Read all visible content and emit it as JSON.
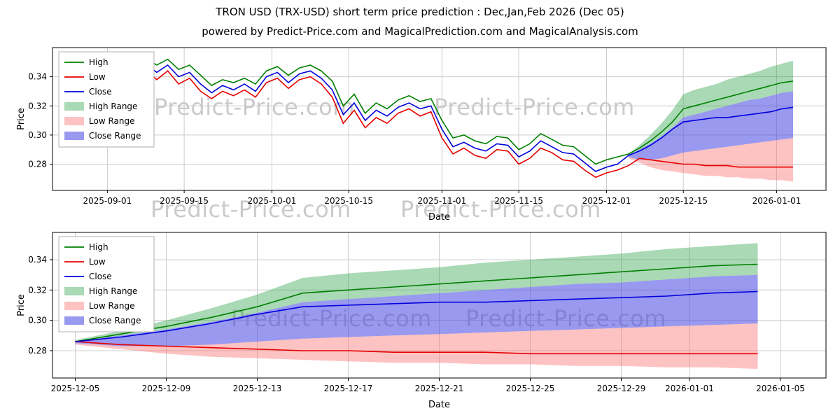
{
  "title": "TRON USD (TRX-USD) short term price prediction : Dec,Jan,Feb 2026 (Dec 05)",
  "subtitle": "powered by Predict-Price.com and MagicalPrediction.com and MagicalAnalysis.com",
  "watermark": {
    "text": "Predict-Price.com"
  },
  "colors": {
    "high": "#008000",
    "low": "#e60000",
    "close": "#0000dd",
    "high_range": "rgba(40,160,70,0.40)",
    "low_range": "rgba(250,110,110,0.42)",
    "close_range": "rgba(70,70,225,0.55)",
    "grid": "#cccccc",
    "axis": "#000000"
  },
  "legend": [
    {
      "label": "High",
      "type": "line",
      "color_key": "high"
    },
    {
      "label": "Low",
      "type": "line",
      "color_key": "low"
    },
    {
      "label": "Close",
      "type": "line",
      "color_key": "close"
    },
    {
      "label": "High Range",
      "type": "patch",
      "color_key": "high_range"
    },
    {
      "label": "Low Range",
      "type": "patch",
      "color_key": "low_range"
    },
    {
      "label": "Close Range",
      "type": "patch",
      "color_key": "close_range"
    }
  ],
  "chart_data": {
    "type": "line",
    "history": {
      "dates": [
        "2025-08-25",
        "2025-08-27",
        "2025-08-29",
        "2025-08-31",
        "2025-09-02",
        "2025-09-04",
        "2025-09-06",
        "2025-09-08",
        "2025-09-10",
        "2025-09-12",
        "2025-09-14",
        "2025-09-16",
        "2025-09-18",
        "2025-09-20",
        "2025-09-22",
        "2025-09-24",
        "2025-09-26",
        "2025-09-28",
        "2025-09-30",
        "2025-10-02",
        "2025-10-04",
        "2025-10-06",
        "2025-10-08",
        "2025-10-10",
        "2025-10-12",
        "2025-10-14",
        "2025-10-16",
        "2025-10-18",
        "2025-10-20",
        "2025-10-22",
        "2025-10-24",
        "2025-10-26",
        "2025-10-28",
        "2025-10-30",
        "2025-11-01",
        "2025-11-03",
        "2025-11-05",
        "2025-11-07",
        "2025-11-09",
        "2025-11-11",
        "2025-11-13",
        "2025-11-15",
        "2025-11-17",
        "2025-11-19",
        "2025-11-21",
        "2025-11-23",
        "2025-11-25",
        "2025-11-27",
        "2025-11-29",
        "2025-12-01",
        "2025-12-03",
        "2025-12-05"
      ],
      "high": [
        0.336,
        0.332,
        0.327,
        0.334,
        0.338,
        0.333,
        0.345,
        0.353,
        0.348,
        0.352,
        0.345,
        0.348,
        0.341,
        0.334,
        0.338,
        0.336,
        0.339,
        0.335,
        0.344,
        0.347,
        0.341,
        0.346,
        0.348,
        0.344,
        0.337,
        0.32,
        0.328,
        0.315,
        0.322,
        0.318,
        0.324,
        0.327,
        0.323,
        0.325,
        0.31,
        0.298,
        0.3,
        0.296,
        0.294,
        0.299,
        0.298,
        0.29,
        0.294,
        0.301,
        0.297,
        0.293,
        0.292,
        0.286,
        0.28,
        0.283,
        0.285,
        0.287
      ],
      "low": [
        0.329,
        0.324,
        0.318,
        0.326,
        0.33,
        0.322,
        0.335,
        0.345,
        0.338,
        0.344,
        0.335,
        0.339,
        0.33,
        0.325,
        0.33,
        0.327,
        0.331,
        0.326,
        0.336,
        0.339,
        0.332,
        0.338,
        0.34,
        0.335,
        0.326,
        0.308,
        0.317,
        0.305,
        0.312,
        0.308,
        0.315,
        0.318,
        0.313,
        0.316,
        0.298,
        0.287,
        0.291,
        0.286,
        0.284,
        0.29,
        0.289,
        0.28,
        0.284,
        0.291,
        0.288,
        0.283,
        0.282,
        0.276,
        0.271,
        0.274,
        0.276,
        0.279
      ],
      "close": [
        0.333,
        0.328,
        0.322,
        0.33,
        0.334,
        0.328,
        0.34,
        0.349,
        0.343,
        0.348,
        0.34,
        0.343,
        0.335,
        0.329,
        0.334,
        0.331,
        0.335,
        0.33,
        0.34,
        0.343,
        0.336,
        0.342,
        0.344,
        0.339,
        0.331,
        0.314,
        0.322,
        0.31,
        0.317,
        0.313,
        0.319,
        0.322,
        0.318,
        0.32,
        0.304,
        0.292,
        0.295,
        0.291,
        0.289,
        0.294,
        0.293,
        0.285,
        0.289,
        0.296,
        0.292,
        0.288,
        0.287,
        0.281,
        0.275,
        0.278,
        0.28,
        0.286
      ]
    },
    "forecast": {
      "dates": [
        "2025-12-05",
        "2025-12-07",
        "2025-12-09",
        "2025-12-11",
        "2025-12-13",
        "2025-12-15",
        "2025-12-17",
        "2025-12-19",
        "2025-12-21",
        "2025-12-23",
        "2025-12-25",
        "2025-12-27",
        "2025-12-29",
        "2025-12-31",
        "2026-01-02",
        "2026-01-04"
      ],
      "high": [
        0.286,
        0.291,
        0.296,
        0.302,
        0.309,
        0.318,
        0.32,
        0.322,
        0.324,
        0.326,
        0.328,
        0.33,
        0.332,
        0.334,
        0.336,
        0.337
      ],
      "low": [
        0.286,
        0.284,
        0.283,
        0.282,
        0.281,
        0.28,
        0.28,
        0.279,
        0.279,
        0.279,
        0.278,
        0.278,
        0.278,
        0.278,
        0.278,
        0.278
      ],
      "close": [
        0.286,
        0.289,
        0.293,
        0.298,
        0.304,
        0.309,
        0.31,
        0.311,
        0.312,
        0.312,
        0.313,
        0.314,
        0.315,
        0.316,
        0.318,
        0.319
      ],
      "high_range_top": [
        0.287,
        0.293,
        0.3,
        0.308,
        0.317,
        0.328,
        0.331,
        0.333,
        0.335,
        0.338,
        0.34,
        0.342,
        0.344,
        0.347,
        0.349,
        0.351
      ],
      "high_range_bottom": [
        0.286,
        0.29,
        0.294,
        0.299,
        0.305,
        0.312,
        0.314,
        0.316,
        0.318,
        0.32,
        0.322,
        0.324,
        0.325,
        0.327,
        0.329,
        0.33
      ],
      "close_range_top": [
        0.286,
        0.29,
        0.294,
        0.299,
        0.305,
        0.312,
        0.314,
        0.316,
        0.318,
        0.32,
        0.322,
        0.324,
        0.325,
        0.327,
        0.329,
        0.33
      ],
      "close_range_bottom": [
        0.285,
        0.283,
        0.283,
        0.284,
        0.286,
        0.288,
        0.289,
        0.29,
        0.291,
        0.292,
        0.293,
        0.294,
        0.295,
        0.296,
        0.297,
        0.298
      ],
      "low_range_top": [
        0.285,
        0.283,
        0.283,
        0.284,
        0.286,
        0.288,
        0.289,
        0.29,
        0.291,
        0.292,
        0.293,
        0.294,
        0.295,
        0.296,
        0.297,
        0.298
      ],
      "low_range_bottom": [
        0.284,
        0.281,
        0.278,
        0.276,
        0.275,
        0.274,
        0.273,
        0.272,
        0.272,
        0.271,
        0.271,
        0.27,
        0.27,
        0.269,
        0.269,
        0.268
      ]
    },
    "charts": [
      {
        "id": "chart-top",
        "scope": "history+forecast",
        "ylabel": "Price",
        "xlabel": "Date",
        "xlim": [
          "2025-08-22",
          "2026-01-10"
        ],
        "ylim": [
          0.262,
          0.36
        ],
        "yticks": [
          "0.28",
          "0.30",
          "0.32",
          "0.34"
        ],
        "xticks": [
          "2025-09-01",
          "2025-09-15",
          "2025-10-01",
          "2025-10-15",
          "2025-11-01",
          "2025-11-15",
          "2025-12-01",
          "2025-12-15",
          "2026-01-01"
        ]
      },
      {
        "id": "chart-bottom",
        "scope": "forecast",
        "ylabel": "Price",
        "xlabel": "Date",
        "xlim": [
          "2025-12-04",
          "2026-01-07"
        ],
        "ylim": [
          0.262,
          0.358
        ],
        "yticks": [
          "0.28",
          "0.30",
          "0.32",
          "0.34"
        ],
        "xticks": [
          "2025-12-05",
          "2025-12-09",
          "2025-12-13",
          "2025-12-17",
          "2025-12-21",
          "2025-12-25",
          "2025-12-29",
          "2026-01-01",
          "2026-01-05"
        ]
      }
    ]
  }
}
